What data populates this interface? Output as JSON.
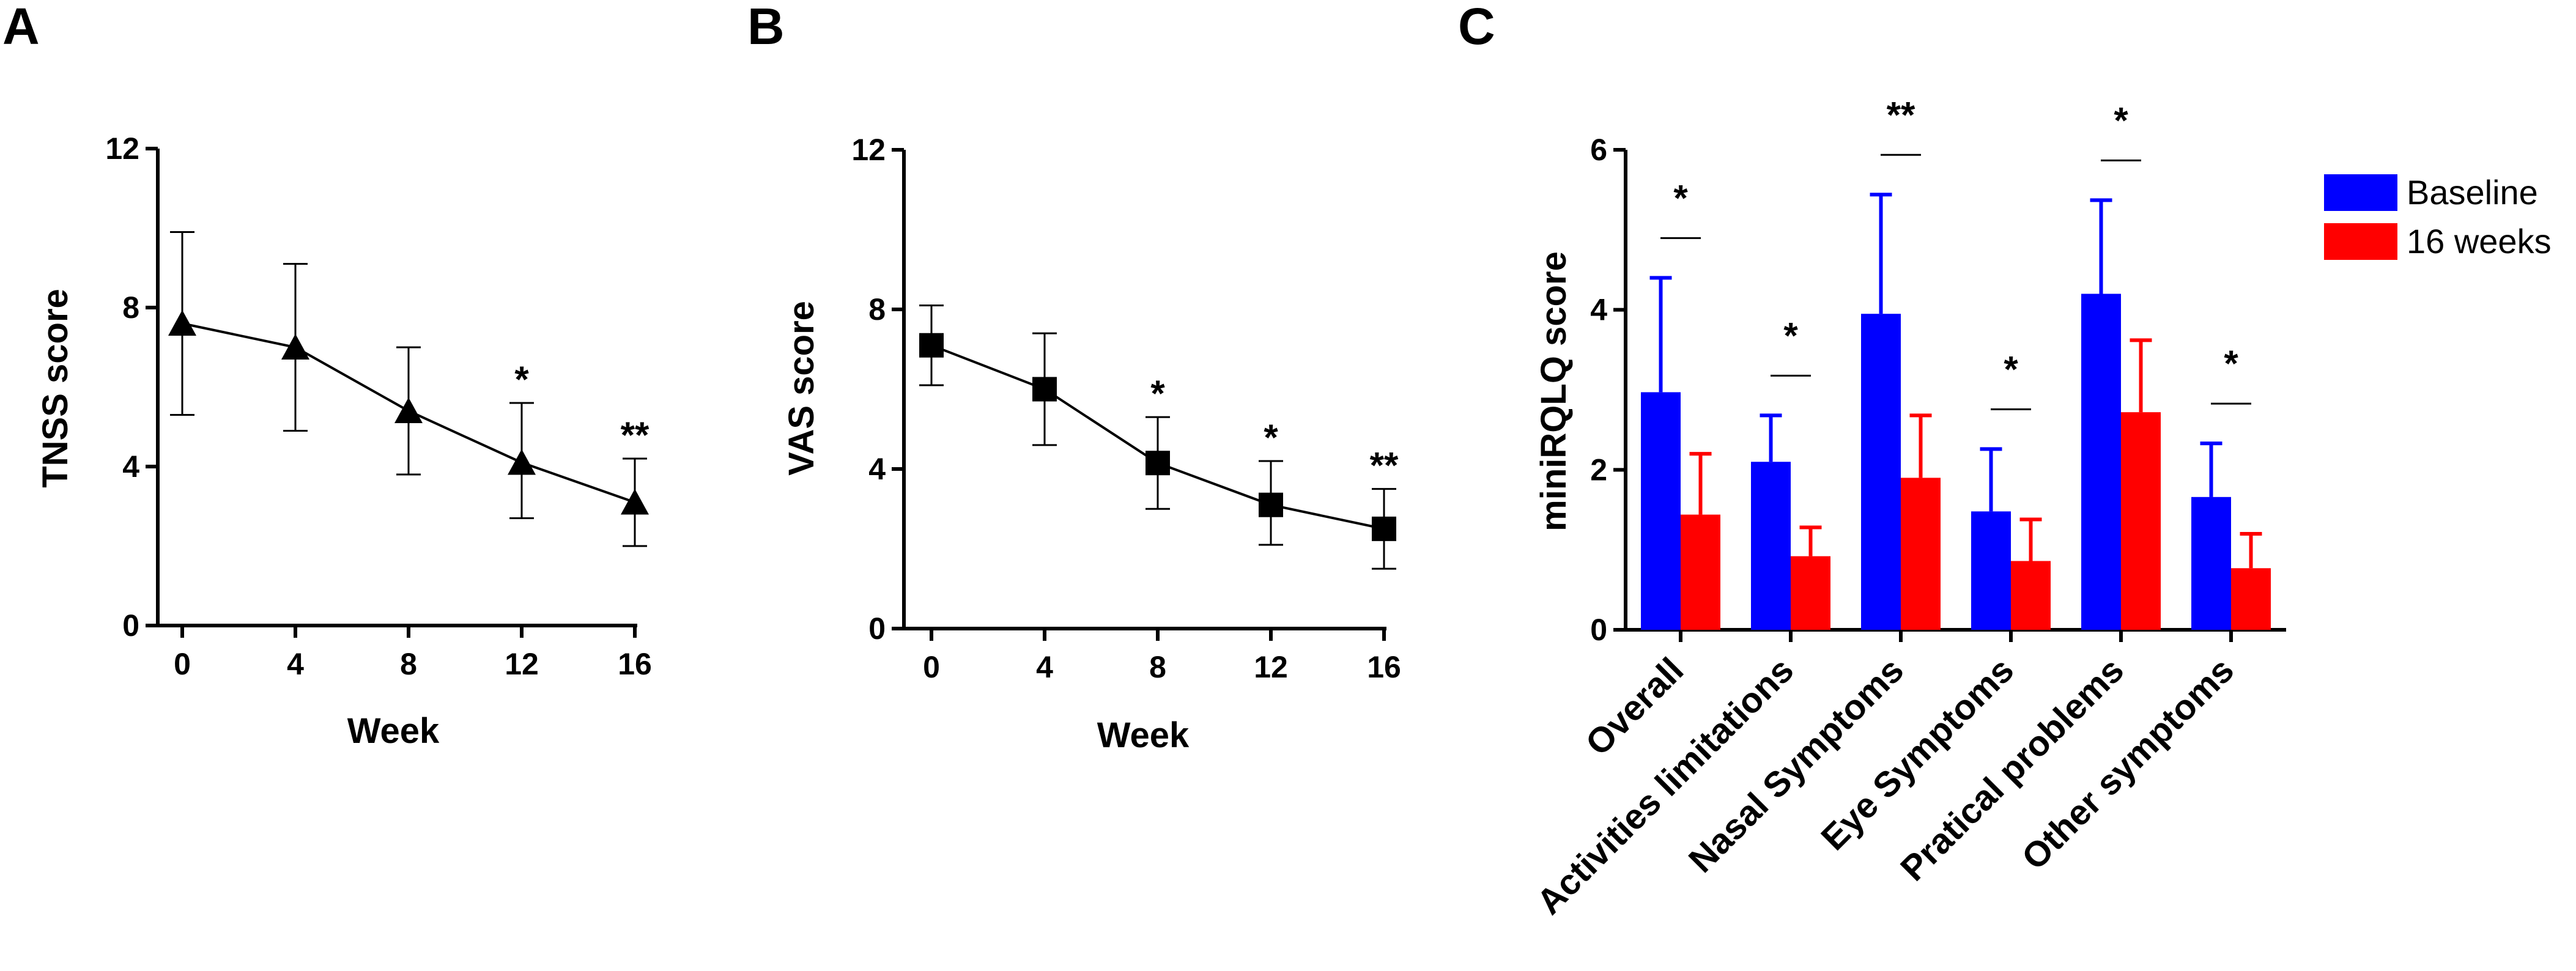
{
  "chart_data": [
    {
      "panel": "A",
      "type": "line",
      "xlabel": "Week",
      "ylabel": "TNSS score",
      "x": [
        0,
        4,
        8,
        12,
        16
      ],
      "y": [
        7.6,
        7.0,
        5.4,
        4.1,
        3.1
      ],
      "error_upper": [
        9.9,
        9.1,
        7.0,
        5.6,
        4.2
      ],
      "error_lower": [
        5.3,
        4.9,
        3.8,
        2.7,
        2.0
      ],
      "marker": "triangle",
      "significance": [
        "",
        "",
        "",
        "*",
        "**"
      ],
      "xticks": [
        "0",
        "4",
        "8",
        "12",
        "16"
      ],
      "yticks": [
        "0",
        "4",
        "8",
        "12"
      ],
      "xlim": [
        0,
        16
      ],
      "ylim": [
        0,
        12
      ]
    },
    {
      "panel": "B",
      "type": "line",
      "xlabel": "Week",
      "ylabel": "VAS score",
      "x": [
        0,
        4,
        8,
        12,
        16
      ],
      "y": [
        7.1,
        6.0,
        4.15,
        3.1,
        2.5
      ],
      "error_upper": [
        8.1,
        7.4,
        5.3,
        4.2,
        3.5
      ],
      "error_lower": [
        6.1,
        4.6,
        3.0,
        2.1,
        1.5
      ],
      "marker": "square",
      "significance": [
        "",
        "",
        "*",
        "*",
        "**"
      ],
      "xticks": [
        "0",
        "4",
        "8",
        "12",
        "16"
      ],
      "yticks": [
        "0",
        "4",
        "8",
        "12"
      ],
      "xlim": [
        0,
        16
      ],
      "ylim": [
        0,
        12
      ]
    },
    {
      "panel": "C",
      "type": "bar",
      "ylabel": "miniRQLQ score",
      "categories": [
        "Overall",
        "Activities limitations",
        "Nasal Symptoms",
        "Eye Symptoms",
        "Pratical problems",
        "Other symptoms"
      ],
      "series": [
        {
          "name": "Baseline",
          "color": "#0000ff",
          "values": [
            2.97,
            2.1,
            3.95,
            1.48,
            4.2,
            1.66
          ],
          "error_upper": [
            4.4,
            2.68,
            5.44,
            2.26,
            5.37,
            2.33
          ]
        },
        {
          "name": "16 weeks",
          "color": "#ff0000",
          "values": [
            1.44,
            0.92,
            1.9,
            0.86,
            2.72,
            0.77
          ],
          "error_upper": [
            2.2,
            1.28,
            2.68,
            1.38,
            3.62,
            1.2
          ]
        }
      ],
      "significance": [
        "*",
        "*",
        "**",
        "*",
        "*",
        "*"
      ],
      "yticks": [
        "0",
        "2",
        "4",
        "6"
      ],
      "ylim": [
        0,
        6
      ],
      "legend_position": "top-right"
    }
  ]
}
